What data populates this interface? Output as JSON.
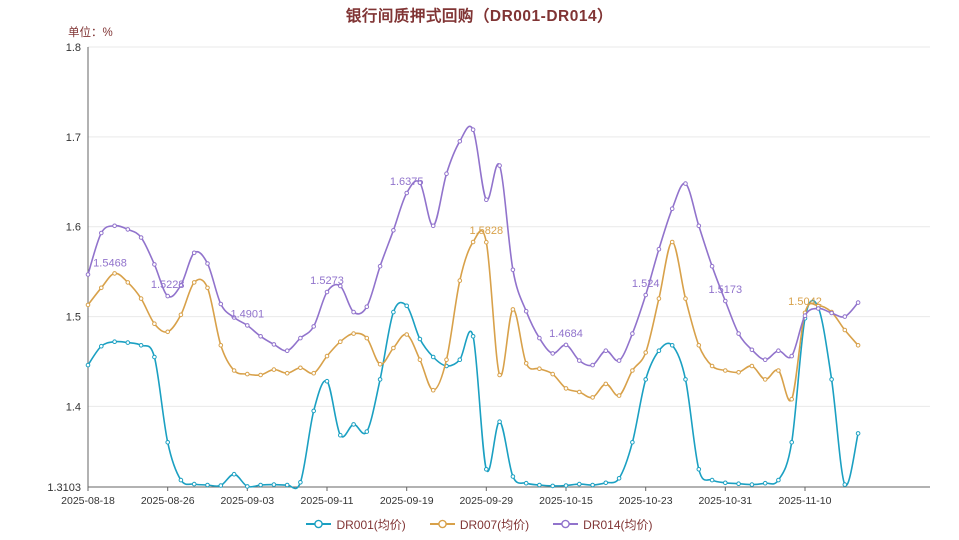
{
  "colors": {
    "heading": "#803434",
    "legend_text": "#803434",
    "axis_line": "#666666",
    "grid_line": "#e9e9e9",
    "tick_label": "#333333",
    "background": "#ffffff"
  },
  "chart_data": {
    "type": "line",
    "title": "银行间质押式回购（DR001-DR014）",
    "unit": "单位：%",
    "legend_position": "bottom",
    "grid": true,
    "ylim": [
      1.3103,
      1.8
    ],
    "yticks": [
      1.8,
      1.7,
      1.6,
      1.5,
      1.4,
      1.3103
    ],
    "ytick_labels": [
      "1.8",
      "1.7",
      "1.6",
      "1.5",
      "1.4",
      "1.3103"
    ],
    "x_tick_indices": [
      0,
      6,
      12,
      18,
      24,
      30,
      36,
      42,
      48,
      54
    ],
    "x": [
      "2025-08-18",
      "2025-08-19",
      "2025-08-20",
      "2025-08-21",
      "2025-08-22",
      "2025-08-25",
      "2025-08-26",
      "2025-08-27",
      "2025-08-28",
      "2025-08-29",
      "2025-09-01",
      "2025-09-02",
      "2025-09-03",
      "2025-09-04",
      "2025-09-05",
      "2025-09-08",
      "2025-09-09",
      "2025-09-10",
      "2025-09-11",
      "2025-09-12",
      "2025-09-15",
      "2025-09-16",
      "2025-09-17",
      "2025-09-18",
      "2025-09-19",
      "2025-09-22",
      "2025-09-23",
      "2025-09-24",
      "2025-09-25",
      "2025-09-26",
      "2025-09-29",
      "2025-09-30",
      "2025-10-09",
      "2025-10-10",
      "2025-10-13",
      "2025-10-14",
      "2025-10-15",
      "2025-10-16",
      "2025-10-17",
      "2025-10-20",
      "2025-10-21",
      "2025-10-22",
      "2025-10-23",
      "2025-10-24",
      "2025-10-27",
      "2025-10-28",
      "2025-10-29",
      "2025-10-30",
      "2025-10-31",
      "2025-11-03",
      "2025-11-04",
      "2025-11-05",
      "2025-11-06",
      "2025-11-07",
      "2025-11-10",
      "2025-11-11",
      "2025-11-12",
      "2025-11-13",
      "2025-11-14"
    ],
    "series": [
      {
        "name": "DR001(均价)",
        "color": "#1ba0c2",
        "values": [
          1.446,
          1.467,
          1.472,
          1.471,
          1.468,
          1.455,
          1.36,
          1.318,
          1.3135,
          1.3125,
          1.312,
          1.3245,
          1.311,
          1.3125,
          1.313,
          1.3125,
          1.3155,
          1.395,
          1.428,
          1.368,
          1.38,
          1.372,
          1.43,
          1.505,
          1.512,
          1.475,
          1.455,
          1.445,
          1.452,
          1.478,
          1.33,
          1.383,
          1.322,
          1.3145,
          1.3125,
          1.3115,
          1.312,
          1.3135,
          1.3125,
          1.315,
          1.32,
          1.36,
          1.43,
          1.462,
          1.468,
          1.43,
          1.33,
          1.318,
          1.315,
          1.314,
          1.313,
          1.3145,
          1.318,
          1.36,
          1.498,
          1.51,
          1.43,
          1.313,
          1.37
        ]
      },
      {
        "name": "DR007(均价)",
        "color": "#d8a14a",
        "values": [
          1.513,
          1.532,
          1.548,
          1.538,
          1.52,
          1.492,
          1.483,
          1.502,
          1.538,
          1.532,
          1.468,
          1.44,
          1.436,
          1.435,
          1.441,
          1.437,
          1.443,
          1.437,
          1.456,
          1.472,
          1.481,
          1.476,
          1.447,
          1.465,
          1.48,
          1.452,
          1.418,
          1.452,
          1.54,
          1.583,
          1.5828,
          1.435,
          1.508,
          1.448,
          1.442,
          1.436,
          1.42,
          1.416,
          1.41,
          1.425,
          1.412,
          1.44,
          1.46,
          1.52,
          1.583,
          1.52,
          1.468,
          1.445,
          1.44,
          1.438,
          1.445,
          1.43,
          1.44,
          1.408,
          1.5042,
          1.512,
          1.505,
          1.485,
          1.468
        ]
      },
      {
        "name": "DR014(均价)",
        "color": "#9173cc",
        "values": [
          1.5468,
          1.593,
          1.601,
          1.597,
          1.588,
          1.558,
          1.5228,
          1.535,
          1.571,
          1.559,
          1.514,
          1.499,
          1.4901,
          1.478,
          1.469,
          1.462,
          1.476,
          1.489,
          1.5273,
          1.534,
          1.505,
          1.511,
          1.556,
          1.596,
          1.6375,
          1.649,
          1.601,
          1.659,
          1.695,
          1.708,
          1.63,
          1.668,
          1.552,
          1.506,
          1.476,
          1.459,
          1.4684,
          1.451,
          1.446,
          1.462,
          1.451,
          1.481,
          1.524,
          1.575,
          1.62,
          1.648,
          1.601,
          1.556,
          1.5173,
          1.481,
          1.463,
          1.452,
          1.462,
          1.456,
          1.501,
          1.509,
          1.504,
          1.5,
          1.5155
        ]
      }
    ],
    "annotations": [
      {
        "index": 0,
        "series": 2,
        "text": "1.5468"
      },
      {
        "index": 6,
        "series": 2,
        "text": "1.5228"
      },
      {
        "index": 12,
        "series": 2,
        "text": "1.4901"
      },
      {
        "index": 18,
        "series": 2,
        "text": "1.5273"
      },
      {
        "index": 24,
        "series": 2,
        "text": "1.6375"
      },
      {
        "index": 30,
        "series": 1,
        "text": "1.5828"
      },
      {
        "index": 36,
        "series": 2,
        "text": "1.4684"
      },
      {
        "index": 42,
        "series": 2,
        "text": "1.524"
      },
      {
        "index": 48,
        "series": 2,
        "text": "1.5173"
      },
      {
        "index": 54,
        "series": 1,
        "text": "1.5042"
      }
    ]
  }
}
